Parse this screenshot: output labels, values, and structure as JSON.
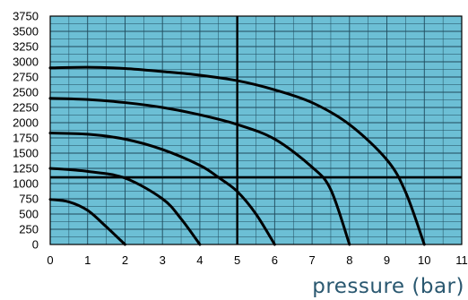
{
  "chart_data": {
    "type": "line",
    "xlabel": "pressure (bar)",
    "ylabel": "",
    "xlim": [
      0,
      11
    ],
    "ylim": [
      0,
      3750
    ],
    "x_ticks": [
      "0",
      "1",
      "2",
      "3",
      "4",
      "5",
      "6",
      "7",
      "8",
      "9",
      "10",
      "11"
    ],
    "y_ticks": [
      "0",
      "250",
      "500",
      "750",
      "1000",
      "1250",
      "1500",
      "1750",
      "2000",
      "2250",
      "2500",
      "2750",
      "3000",
      "3250",
      "3500",
      "3750"
    ],
    "minor_x_step": 0.5,
    "minor_y_step": 125,
    "grid": true,
    "series": [
      {
        "x": [
          0,
          0.5,
          1,
          1.5,
          2
        ],
        "y": [
          740,
          700,
          560,
          290,
          0
        ]
      },
      {
        "x": [
          0,
          1,
          2,
          3,
          3.5,
          4
        ],
        "y": [
          1250,
          1200,
          1090,
          750,
          420,
          0
        ]
      },
      {
        "x": [
          0,
          1,
          2,
          3,
          4,
          4.5,
          5,
          5.5,
          6
        ],
        "y": [
          1830,
          1810,
          1730,
          1560,
          1300,
          1100,
          870,
          500,
          0
        ]
      },
      {
        "x": [
          0,
          1,
          2,
          3,
          4,
          5,
          6,
          7,
          7.5,
          8
        ],
        "y": [
          2400,
          2380,
          2330,
          2250,
          2130,
          1970,
          1730,
          1270,
          900,
          0
        ]
      },
      {
        "x": [
          0,
          1,
          2,
          3,
          4,
          5,
          6,
          7,
          8,
          9,
          9.5,
          10
        ],
        "y": [
          2900,
          2910,
          2890,
          2840,
          2780,
          2690,
          2540,
          2330,
          1970,
          1390,
          860,
          0
        ]
      }
    ],
    "reference_lines": {
      "x": 5,
      "y": 1100
    },
    "colors": {
      "plot_bg": "#6cbfd5",
      "grid": "#1f4a5c",
      "curve": "#000000",
      "xlabel": "#2a5870"
    }
  }
}
